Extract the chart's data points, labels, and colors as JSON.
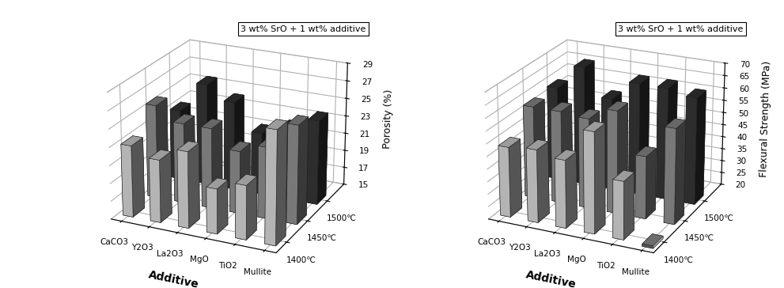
{
  "categories": [
    "CaCO3",
    "Y2O3",
    "La2O3",
    "MgO",
    "TiO2",
    "Mullite"
  ],
  "temperatures": [
    "1400℃",
    "1450℃",
    "1500℃"
  ],
  "porosity": {
    "1400": [
      23.0,
      22.0,
      23.5,
      20.0,
      21.0,
      27.5
    ],
    "1450": [
      25.5,
      24.0,
      24.0,
      22.0,
      23.0,
      26.0
    ],
    "1500": [
      23.0,
      26.5,
      25.0,
      22.0,
      23.0,
      24.5
    ]
  },
  "flexural": {
    "1400": [
      48.0,
      49.0,
      47.0,
      60.0,
      43.0,
      19.0
    ],
    "1450": [
      57.0,
      57.0,
      56.0,
      61.0,
      45.0,
      58.0
    ],
    "1500": [
      58.0,
      68.0,
      57.0,
      65.0,
      65.0,
      63.0
    ]
  },
  "porosity_ylim": [
    15,
    29
  ],
  "porosity_yticks": [
    15,
    17,
    19,
    21,
    23,
    25,
    27,
    29
  ],
  "flexural_ylim": [
    20,
    70
  ],
  "flexural_yticks": [
    20,
    25,
    30,
    35,
    40,
    45,
    50,
    55,
    60,
    65,
    70
  ],
  "bar_colors": [
    "#cccccc",
    "#888888",
    "#333333"
  ],
  "annotation": "3 wt% SrO + 1 wt% additive",
  "ylabel_porosity": "Porosity (%)",
  "ylabel_flexural": "Flexural Strength (MPa)",
  "xlabel": "Additive",
  "background_color": "#ffffff",
  "elev": 22,
  "azim": -65
}
